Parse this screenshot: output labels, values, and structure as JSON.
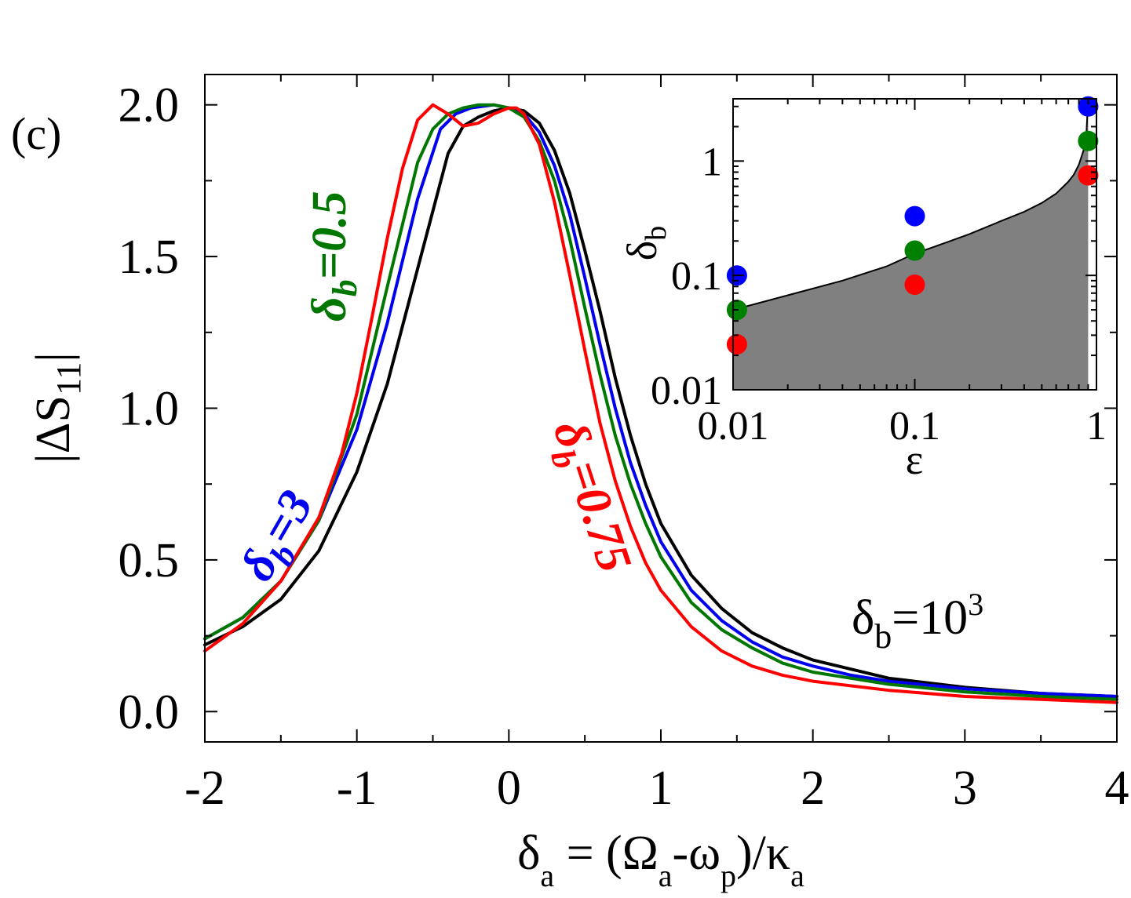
{
  "chart_data": {
    "panel_label": "(c)",
    "main": {
      "type": "line",
      "xlabel": {
        "delta": "δ",
        "a1": "a",
        "eq": " = (Ω",
        "a2": "a",
        "minus": "-ω",
        "p": "p",
        "over": ")/κ",
        "a3": "a"
      },
      "ylabel": {
        "text": "|ΔS",
        "sub": "11",
        "close": "|"
      },
      "xlim": [
        -2,
        4
      ],
      "ylim": [
        -0.1,
        2.1
      ],
      "xticks": [
        -2,
        -1,
        0,
        1,
        2,
        3,
        4
      ],
      "xtick_labels": [
        "-2",
        "-1",
        "0",
        "1",
        "2",
        "3",
        "4"
      ],
      "yticks": [
        0.0,
        0.5,
        1.0,
        1.5,
        2.0
      ],
      "ytick_labels": [
        "0.0",
        "0.5",
        "1.0",
        "1.5",
        "2.0"
      ],
      "series": [
        {
          "name": "δb=10^3",
          "color": "#000000",
          "x": [
            -2,
            -1.75,
            -1.5,
            -1.25,
            -1.0,
            -0.8,
            -0.6,
            -0.4,
            -0.3,
            -0.2,
            -0.1,
            0.0,
            0.1,
            0.2,
            0.3,
            0.4,
            0.5,
            0.6,
            0.7,
            0.8,
            0.9,
            1.0,
            1.2,
            1.4,
            1.6,
            1.8,
            2.0,
            2.25,
            2.5,
            3.0,
            3.5,
            4.0
          ],
          "y": [
            0.22,
            0.28,
            0.37,
            0.53,
            0.79,
            1.08,
            1.46,
            1.84,
            1.93,
            1.96,
            1.98,
            1.99,
            1.98,
            1.94,
            1.85,
            1.71,
            1.52,
            1.32,
            1.1,
            0.91,
            0.75,
            0.62,
            0.45,
            0.34,
            0.26,
            0.21,
            0.17,
            0.14,
            0.11,
            0.08,
            0.06,
            0.05
          ]
        },
        {
          "name": "δb=3",
          "color": "#0000ee",
          "x": [
            -2,
            -1.75,
            -1.5,
            -1.25,
            -1.0,
            -0.8,
            -0.6,
            -0.45,
            -0.35,
            -0.25,
            -0.1,
            0.0,
            0.1,
            0.2,
            0.3,
            0.4,
            0.5,
            0.6,
            0.7,
            0.8,
            0.9,
            1.0,
            1.2,
            1.4,
            1.6,
            1.8,
            2.0,
            2.25,
            2.5,
            3.0,
            3.5,
            4.0
          ],
          "y": [
            0.24,
            0.31,
            0.43,
            0.63,
            0.93,
            1.28,
            1.69,
            1.92,
            1.97,
            1.99,
            2.0,
            1.99,
            1.97,
            1.91,
            1.8,
            1.64,
            1.43,
            1.21,
            1.0,
            0.82,
            0.68,
            0.56,
            0.4,
            0.3,
            0.23,
            0.18,
            0.15,
            0.12,
            0.1,
            0.075,
            0.06,
            0.05
          ]
        },
        {
          "name": "δb=0.5",
          "color": "#007700",
          "x": [
            -2,
            -1.75,
            -1.5,
            -1.25,
            -1.0,
            -0.8,
            -0.6,
            -0.5,
            -0.4,
            -0.3,
            -0.2,
            -0.1,
            0.0,
            0.1,
            0.2,
            0.3,
            0.4,
            0.5,
            0.6,
            0.7,
            0.8,
            0.9,
            1.0,
            1.2,
            1.4,
            1.6,
            1.8,
            2.0,
            2.25,
            2.5,
            3.0,
            3.5,
            4.0
          ],
          "y": [
            0.24,
            0.31,
            0.43,
            0.63,
            0.98,
            1.4,
            1.81,
            1.92,
            1.97,
            1.99,
            2.0,
            2.0,
            1.99,
            1.96,
            1.88,
            1.75,
            1.56,
            1.33,
            1.11,
            0.91,
            0.75,
            0.62,
            0.51,
            0.36,
            0.27,
            0.21,
            0.16,
            0.13,
            0.11,
            0.09,
            0.065,
            0.05,
            0.04
          ]
        },
        {
          "name": "δb=0.75",
          "color": "#ff0000",
          "x": [
            -2,
            -1.75,
            -1.5,
            -1.25,
            -1.1,
            -1.0,
            -0.9,
            -0.8,
            -0.7,
            -0.6,
            -0.5,
            -0.4,
            -0.3,
            -0.2,
            -0.1,
            0.0,
            0.05,
            0.1,
            0.2,
            0.3,
            0.4,
            0.5,
            0.6,
            0.7,
            0.8,
            0.9,
            1.0,
            1.2,
            1.4,
            1.6,
            1.8,
            2.0,
            2.5,
            3.0,
            3.5,
            4.0
          ],
          "y": [
            0.2,
            0.29,
            0.43,
            0.64,
            0.85,
            1.05,
            1.3,
            1.56,
            1.79,
            1.95,
            2.0,
            1.97,
            1.93,
            1.94,
            1.97,
            1.99,
            1.99,
            1.97,
            1.87,
            1.68,
            1.44,
            1.19,
            0.95,
            0.76,
            0.61,
            0.49,
            0.4,
            0.28,
            0.2,
            0.15,
            0.12,
            0.1,
            0.07,
            0.05,
            0.04,
            0.03
          ]
        }
      ],
      "annotations": [
        {
          "greek": "δ",
          "sub": "b",
          "value": "=0.5",
          "color": "#007700"
        },
        {
          "greek": "δ",
          "sub": "b",
          "value": "=3",
          "color": "#0000ee"
        },
        {
          "greek": "δ",
          "sub": "b",
          "value": "=0.75",
          "color": "#ff0000"
        },
        {
          "greek": "δ",
          "sub": "b",
          "value": "=10",
          "sup": "3",
          "color": "#000000"
        }
      ]
    },
    "inset": {
      "type": "scatter",
      "xscale": "log",
      "yscale": "log",
      "xlim": [
        0.01,
        1
      ],
      "ylim": [
        0.01,
        3.5
      ],
      "xlabel": "ε",
      "ylabel": {
        "greek": "δ",
        "sub": "b"
      },
      "xtick_labels": [
        "0.01",
        "0.1",
        "1"
      ],
      "ytick_labels": [
        "0.01",
        "0.1",
        "1"
      ],
      "boundary": {
        "color": "#808080",
        "x": [
          0.01,
          0.02,
          0.04,
          0.07,
          0.1,
          0.15,
          0.2,
          0.3,
          0.4,
          0.5,
          0.6,
          0.7,
          0.75,
          0.8,
          0.85,
          0.88,
          0.9
        ],
        "y": [
          0.05,
          0.067,
          0.09,
          0.12,
          0.155,
          0.195,
          0.23,
          0.3,
          0.36,
          0.43,
          0.52,
          0.66,
          0.76,
          0.93,
          1.25,
          1.7,
          3.5
        ]
      },
      "points": [
        {
          "x": 0.0105,
          "y": 0.1,
          "color": "#0000ff"
        },
        {
          "x": 0.0105,
          "y": 0.05,
          "color": "#008000"
        },
        {
          "x": 0.0105,
          "y": 0.025,
          "color": "#ff0000"
        },
        {
          "x": 0.1,
          "y": 0.33,
          "color": "#0000ff"
        },
        {
          "x": 0.1,
          "y": 0.165,
          "color": "#008000"
        },
        {
          "x": 0.1,
          "y": 0.083,
          "color": "#ff0000"
        },
        {
          "x": 0.9,
          "y": 3.0,
          "color": "#0000ff"
        },
        {
          "x": 0.9,
          "y": 1.5,
          "color": "#008000"
        },
        {
          "x": 0.9,
          "y": 0.75,
          "color": "#ff0000"
        }
      ]
    }
  }
}
